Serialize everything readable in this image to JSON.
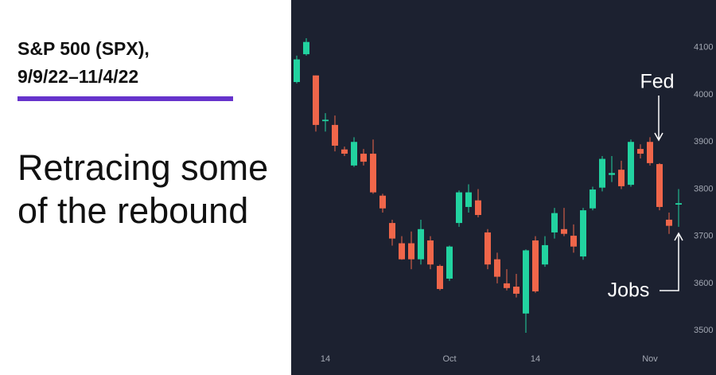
{
  "chart_data": {
    "type": "candlestick",
    "title": "S&P 500 (SPX),",
    "subtitle": "9/9/22–11/4/22",
    "headline": "Retracing some of the rebound",
    "annotations": [
      "Fed",
      "Jobs"
    ],
    "up_color": "#22d3a0",
    "down_color": "#f0664a",
    "open": [
      4027,
      4086,
      4041,
      3944,
      3936,
      3884,
      3850,
      3875,
      3875,
      3786,
      3728,
      3685,
      3685,
      3651,
      3691,
      3637,
      3610,
      3728,
      3762,
      3776,
      3708,
      3651,
      3600,
      3593,
      3536,
      3691,
      3640,
      3708,
      3715,
      3701,
      3657,
      3759,
      3803,
      3830,
      3841,
      3809,
      3885,
      3900,
      3853,
      3735,
      3767
    ],
    "high": [
      4083,
      4120,
      4041,
      3961,
      3956,
      3890,
      3910,
      3885,
      3905,
      3790,
      3735,
      3700,
      3710,
      3735,
      3700,
      3640,
      3680,
      3797,
      3810,
      3800,
      3715,
      3665,
      3630,
      3620,
      3672,
      3700,
      3700,
      3760,
      3760,
      3725,
      3760,
      3805,
      3870,
      3870,
      3860,
      3905,
      3895,
      3910,
      3855,
      3750,
      3800
    ],
    "low": [
      4024,
      4083,
      3922,
      3922,
      3880,
      3870,
      3847,
      3850,
      3790,
      3750,
      3680,
      3650,
      3630,
      3640,
      3630,
      3585,
      3605,
      3720,
      3750,
      3740,
      3630,
      3600,
      3585,
      3570,
      3495,
      3580,
      3635,
      3695,
      3700,
      3665,
      3650,
      3755,
      3795,
      3815,
      3800,
      3805,
      3865,
      3850,
      3755,
      3705,
      3720
    ],
    "close": [
      4075,
      4112,
      3936,
      3947,
      3892,
      3875,
      3900,
      3858,
      3793,
      3759,
      3695,
      3651,
      3651,
      3715,
      3640,
      3588,
      3678,
      3793,
      3793,
      3745,
      3640,
      3614,
      3590,
      3578,
      3670,
      3583,
      3681,
      3749,
      3705,
      3678,
      3755,
      3799,
      3864,
      3834,
      3806,
      3900,
      3875,
      3855,
      3762,
      3722,
      3770
    ],
    "ylim": [
      3463,
      4201
    ],
    "yticks": [
      3500,
      3600,
      3700,
      3800,
      3900,
      4000,
      4100
    ],
    "xticks": [
      {
        "value": 3,
        "label": "14"
      },
      {
        "value": 16,
        "label": "Oct"
      },
      {
        "value": 25,
        "label": "14"
      },
      {
        "value": 37,
        "label": "Nov"
      }
    ]
  }
}
